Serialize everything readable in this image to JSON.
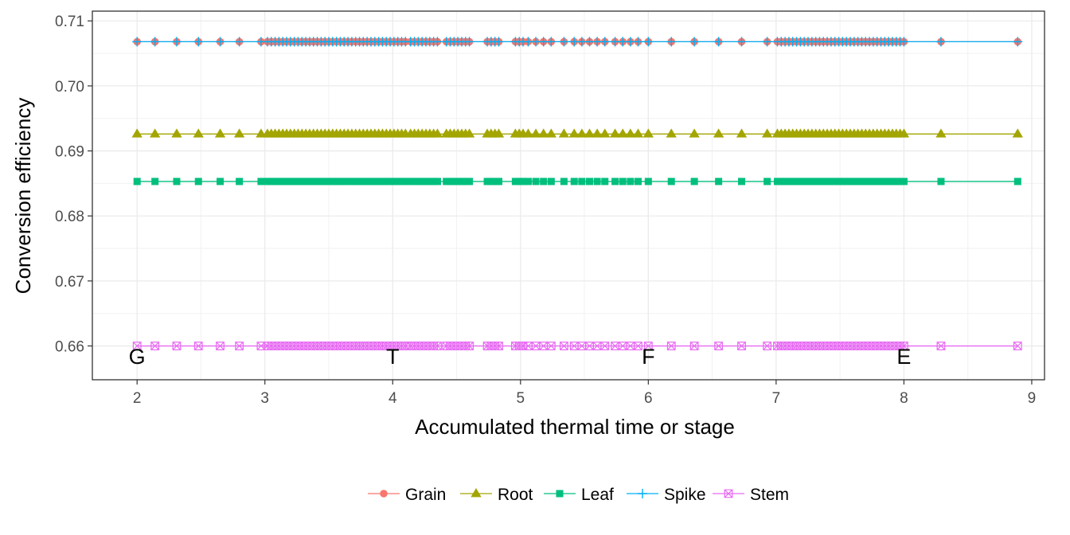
{
  "chart_data": {
    "type": "line",
    "title": "",
    "xlabel": "Accumulated thermal time or stage",
    "ylabel": "Conversion efficiency",
    "xlim": [
      1.65,
      9.1
    ],
    "ylim": [
      0.6548,
      0.7115
    ],
    "xticks": [
      2,
      3,
      4,
      5,
      6,
      7,
      8,
      9
    ],
    "yticks": [
      0.66,
      0.67,
      0.68,
      0.69,
      0.7,
      0.71
    ],
    "ytick_labels": [
      "0.66",
      "0.67",
      "0.68",
      "0.69",
      "0.70",
      "0.71"
    ],
    "grid": true,
    "legend_position": "bottom",
    "x": [
      2.0,
      2.14,
      2.31,
      2.48,
      2.65,
      2.8,
      2.97,
      3.02,
      3.05,
      3.08,
      3.11,
      3.14,
      3.17,
      3.2,
      3.23,
      3.26,
      3.29,
      3.32,
      3.35,
      3.38,
      3.41,
      3.44,
      3.47,
      3.5,
      3.53,
      3.56,
      3.59,
      3.62,
      3.65,
      3.68,
      3.71,
      3.74,
      3.77,
      3.8,
      3.83,
      3.86,
      3.89,
      3.92,
      3.95,
      3.98,
      4.01,
      4.04,
      4.07,
      4.1,
      4.14,
      4.17,
      4.2,
      4.23,
      4.26,
      4.29,
      4.32,
      4.35,
      4.42,
      4.45,
      4.48,
      4.51,
      4.54,
      4.57,
      4.6,
      4.74,
      4.77,
      4.8,
      4.83,
      4.96,
      4.99,
      5.02,
      5.06,
      5.12,
      5.18,
      5.24,
      5.34,
      5.42,
      5.48,
      5.54,
      5.6,
      5.66,
      5.74,
      5.8,
      5.86,
      5.92,
      6.0,
      6.18,
      6.36,
      6.55,
      6.73,
      6.93,
      7.01,
      7.04,
      7.07,
      7.1,
      7.13,
      7.16,
      7.19,
      7.22,
      7.25,
      7.28,
      7.31,
      7.34,
      7.37,
      7.4,
      7.43,
      7.46,
      7.49,
      7.52,
      7.55,
      7.58,
      7.61,
      7.64,
      7.67,
      7.7,
      7.73,
      7.76,
      7.79,
      7.82,
      7.85,
      7.88,
      7.91,
      7.94,
      7.97,
      8.0,
      8.29,
      8.89
    ],
    "series": [
      {
        "name": "Grain",
        "color": "#F8766D",
        "marker": "circle",
        "value": 0.7068
      },
      {
        "name": "Root",
        "color": "#A3A500",
        "marker": "triangle",
        "value": 0.6926
      },
      {
        "name": "Leaf",
        "color": "#00BF7D",
        "marker": "square",
        "value": 0.6853
      },
      {
        "name": "Spike",
        "color": "#00B0F6",
        "marker": "plus",
        "value": 0.7068
      },
      {
        "name": "Stem",
        "color": "#E76BF3",
        "marker": "crossbox",
        "value": 0.66
      }
    ],
    "annotations": [
      {
        "text": "G",
        "x": 2.0,
        "y": 0.6585
      },
      {
        "text": "T",
        "x": 4.0,
        "y": 0.6585
      },
      {
        "text": "F",
        "x": 6.0,
        "y": 0.6585
      },
      {
        "text": "E",
        "x": 8.0,
        "y": 0.6585
      }
    ]
  }
}
